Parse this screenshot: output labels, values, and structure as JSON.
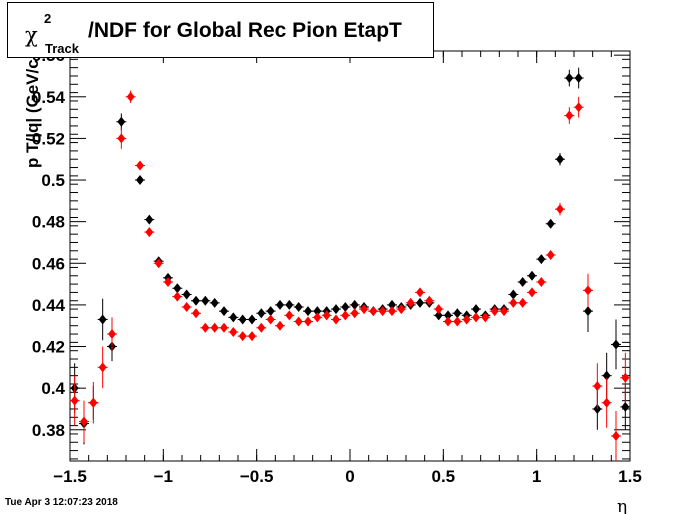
{
  "title": {
    "chi": "χ",
    "sup": "2",
    "sub": "Track",
    "main": "/NDF for Global Rec Pion EtapT"
  },
  "timestamp": "Tue Apr  3 12:07:23 2018",
  "chart_data": {
    "type": "scatter",
    "title": "χ²_Track/NDF for Global Rec Pion EtapT",
    "xlabel": "η",
    "ylabel": "p T/|q| (GeV/c",
    "xlim": [
      -1.5,
      1.5
    ],
    "ylim": [
      0.365,
      0.562
    ],
    "xticks": [
      -1.5,
      -1,
      -0.5,
      0,
      0.5,
      1,
      1.5
    ],
    "xtick_labels": [
      "−1.5",
      "−1",
      "−0.5",
      "0",
      "0.5",
      "1",
      "1.5"
    ],
    "yticks": [
      0.38,
      0.4,
      0.42,
      0.44,
      0.46,
      0.48,
      0.5,
      0.52,
      0.54,
      0.56
    ],
    "ytick_labels": [
      "0.38",
      "0.4",
      "0.42",
      "0.44",
      "0.46",
      "0.48",
      "0.5",
      "0.52",
      "0.54",
      "0.56"
    ],
    "grid": false,
    "series": [
      {
        "color": "#000000",
        "points": [
          [
            -1.475,
            0.4,
            0.012
          ],
          [
            -1.425,
            0.383,
            0.01
          ],
          [
            -1.375,
            0.393,
            0.008
          ],
          [
            -1.325,
            0.433,
            0.01
          ],
          [
            -1.275,
            0.42,
            0.007
          ],
          [
            -1.225,
            0.528,
            0.004
          ],
          [
            -1.125,
            0.5,
            0.002
          ],
          [
            -1.075,
            0.481,
            0.002
          ],
          [
            -1.025,
            0.461,
            0.002
          ],
          [
            -0.975,
            0.453,
            0.002
          ],
          [
            -0.925,
            0.448,
            0.001
          ],
          [
            -0.875,
            0.445,
            0.001
          ],
          [
            -0.825,
            0.442,
            0.001
          ],
          [
            -0.775,
            0.442,
            0.001
          ],
          [
            -0.725,
            0.441,
            0.001
          ],
          [
            -0.675,
            0.437,
            0.001
          ],
          [
            -0.625,
            0.434,
            0.001
          ],
          [
            -0.575,
            0.433,
            0.001
          ],
          [
            -0.525,
            0.433,
            0.001
          ],
          [
            -0.475,
            0.436,
            0.001
          ],
          [
            -0.425,
            0.437,
            0.001
          ],
          [
            -0.375,
            0.44,
            0.001
          ],
          [
            -0.325,
            0.44,
            0.001
          ],
          [
            -0.275,
            0.439,
            0.001
          ],
          [
            -0.225,
            0.437,
            0.001
          ],
          [
            -0.175,
            0.437,
            0.001
          ],
          [
            -0.125,
            0.437,
            0.001
          ],
          [
            -0.075,
            0.438,
            0.001
          ],
          [
            -0.025,
            0.439,
            0.001
          ],
          [
            0.025,
            0.44,
            0.001
          ],
          [
            0.075,
            0.439,
            0.001
          ],
          [
            0.125,
            0.437,
            0.001
          ],
          [
            0.175,
            0.438,
            0.001
          ],
          [
            0.225,
            0.44,
            0.001
          ],
          [
            0.275,
            0.439,
            0.001
          ],
          [
            0.325,
            0.44,
            0.001
          ],
          [
            0.375,
            0.441,
            0.001
          ],
          [
            0.425,
            0.441,
            0.001
          ],
          [
            0.475,
            0.435,
            0.001
          ],
          [
            0.525,
            0.435,
            0.001
          ],
          [
            0.575,
            0.436,
            0.001
          ],
          [
            0.625,
            0.435,
            0.001
          ],
          [
            0.675,
            0.438,
            0.001
          ],
          [
            0.725,
            0.435,
            0.001
          ],
          [
            0.775,
            0.438,
            0.001
          ],
          [
            0.825,
            0.438,
            0.001
          ],
          [
            0.875,
            0.445,
            0.002
          ],
          [
            0.925,
            0.451,
            0.002
          ],
          [
            0.975,
            0.454,
            0.002
          ],
          [
            1.025,
            0.462,
            0.002
          ],
          [
            1.075,
            0.479,
            0.002
          ],
          [
            1.125,
            0.51,
            0.003
          ],
          [
            1.175,
            0.549,
            0.004
          ],
          [
            1.225,
            0.549,
            0.005
          ],
          [
            1.275,
            0.437,
            0.01
          ],
          [
            1.325,
            0.39,
            0.01
          ],
          [
            1.375,
            0.406,
            0.011
          ],
          [
            1.425,
            0.421,
            0.012
          ],
          [
            1.475,
            0.391,
            0.011
          ]
        ]
      },
      {
        "color": "#ff0000",
        "points": [
          [
            -1.475,
            0.394,
            0.012
          ],
          [
            -1.425,
            0.384,
            0.01
          ],
          [
            -1.375,
            0.393,
            0.01
          ],
          [
            -1.325,
            0.41,
            0.01
          ],
          [
            -1.275,
            0.426,
            0.008
          ],
          [
            -1.225,
            0.52,
            0.005
          ],
          [
            -1.175,
            0.54,
            0.003
          ],
          [
            -1.125,
            0.507,
            0.002
          ],
          [
            -1.075,
            0.475,
            0.002
          ],
          [
            -1.025,
            0.46,
            0.002
          ],
          [
            -0.975,
            0.451,
            0.002
          ],
          [
            -0.925,
            0.444,
            0.001
          ],
          [
            -0.875,
            0.439,
            0.001
          ],
          [
            -0.825,
            0.436,
            0.001
          ],
          [
            -0.775,
            0.429,
            0.001
          ],
          [
            -0.725,
            0.429,
            0.001
          ],
          [
            -0.675,
            0.429,
            0.001
          ],
          [
            -0.625,
            0.427,
            0.001
          ],
          [
            -0.575,
            0.425,
            0.001
          ],
          [
            -0.525,
            0.425,
            0.001
          ],
          [
            -0.475,
            0.429,
            0.001
          ],
          [
            -0.425,
            0.433,
            0.001
          ],
          [
            -0.375,
            0.43,
            0.001
          ],
          [
            -0.325,
            0.435,
            0.001
          ],
          [
            -0.275,
            0.432,
            0.001
          ],
          [
            -0.225,
            0.432,
            0.001
          ],
          [
            -0.175,
            0.434,
            0.001
          ],
          [
            -0.125,
            0.435,
            0.001
          ],
          [
            -0.075,
            0.433,
            0.001
          ],
          [
            -0.025,
            0.435,
            0.001
          ],
          [
            0.025,
            0.436,
            0.001
          ],
          [
            0.075,
            0.438,
            0.001
          ],
          [
            0.125,
            0.437,
            0.001
          ],
          [
            0.175,
            0.437,
            0.001
          ],
          [
            0.225,
            0.437,
            0.001
          ],
          [
            0.275,
            0.438,
            0.001
          ],
          [
            0.325,
            0.441,
            0.001
          ],
          [
            0.375,
            0.446,
            0.001
          ],
          [
            0.425,
            0.442,
            0.001
          ],
          [
            0.475,
            0.438,
            0.001
          ],
          [
            0.525,
            0.432,
            0.001
          ],
          [
            0.575,
            0.432,
            0.001
          ],
          [
            0.625,
            0.433,
            0.001
          ],
          [
            0.675,
            0.434,
            0.001
          ],
          [
            0.725,
            0.434,
            0.001
          ],
          [
            0.775,
            0.437,
            0.001
          ],
          [
            0.825,
            0.437,
            0.001
          ],
          [
            0.875,
            0.441,
            0.002
          ],
          [
            0.925,
            0.441,
            0.002
          ],
          [
            0.975,
            0.446,
            0.002
          ],
          [
            1.025,
            0.451,
            0.002
          ],
          [
            1.075,
            0.464,
            0.002
          ],
          [
            1.125,
            0.486,
            0.003
          ],
          [
            1.175,
            0.531,
            0.004
          ],
          [
            1.225,
            0.535,
            0.005
          ],
          [
            1.275,
            0.447,
            0.008
          ],
          [
            1.325,
            0.401,
            0.011
          ],
          [
            1.375,
            0.393,
            0.012
          ],
          [
            1.425,
            0.377,
            0.012
          ],
          [
            1.475,
            0.405,
            0.012
          ]
        ]
      }
    ]
  }
}
